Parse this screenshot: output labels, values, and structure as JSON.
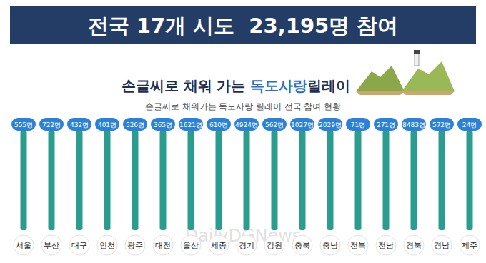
{
  "chart_data": {
    "type": "pictogram",
    "title": "전국 17개 시도  23,195명 참여",
    "subtitle_parts": [
      "손글씨로 채워 가는 ",
      "독도사랑",
      "릴레이"
    ],
    "caption": "손글씨로 채워가는 독도사랑 릴레이 전국 참여 현황",
    "watermark": "DailyDGNews",
    "categories": [
      "서울",
      "부산",
      "대구",
      "인천",
      "광주",
      "대전",
      "울산",
      "세종",
      "경기",
      "강원",
      "충북",
      "충남",
      "전북",
      "전남",
      "경북",
      "경남",
      "제주"
    ],
    "values": [
      555,
      722,
      432,
      401,
      526,
      365,
      1621,
      610,
      4924,
      562,
      1027,
      2029,
      71,
      271,
      8483,
      572,
      24
    ],
    "value_labels": [
      "555명",
      "722명",
      "432명",
      "401명",
      "526명",
      "365명",
      "1621명",
      "610명",
      "4924명",
      "562명",
      "1027명",
      "2029명",
      "71명",
      "271명",
      "8483명",
      "572명",
      "24명"
    ],
    "color": "#2a9d8f",
    "data_labels": true,
    "tick_labels": "x",
    "grid": false
  }
}
